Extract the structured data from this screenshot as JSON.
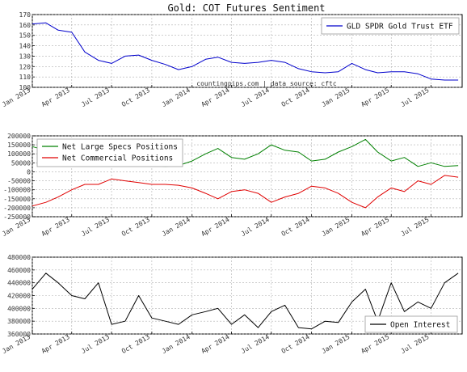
{
  "title": "Gold: COT Futures Sentiment",
  "annotation": "countingpips.com | data source: cftc",
  "x_ticks": [
    "Jan 2013",
    "Apr 2013",
    "Jul 2013",
    "Oct 2013",
    "Jan 2014",
    "Apr 2014",
    "Jul 2014",
    "Oct 2014",
    "Jan 2015",
    "Apr 2015",
    "Jul 2015"
  ],
  "colors": {
    "gld": "#0000cc",
    "specs": "#008000",
    "commercial": "#e00000",
    "oi": "#000000"
  },
  "chart_data": [
    {
      "type": "line",
      "x": [
        "2013-01-01",
        "2013-02-01",
        "2013-03-01",
        "2013-04-01",
        "2013-05-01",
        "2013-06-01",
        "2013-07-01",
        "2013-08-01",
        "2013-09-01",
        "2013-10-01",
        "2013-11-01",
        "2013-12-01",
        "2014-01-01",
        "2014-02-01",
        "2014-03-01",
        "2014-04-01",
        "2014-05-01",
        "2014-06-01",
        "2014-07-01",
        "2014-08-01",
        "2014-09-01",
        "2014-10-01",
        "2014-11-01",
        "2014-12-01",
        "2015-01-01",
        "2015-02-01",
        "2015-03-01",
        "2015-04-01",
        "2015-05-01",
        "2015-06-01",
        "2015-07-01",
        "2015-08-01",
        "2015-09-01"
      ],
      "series": [
        {
          "name": "GLD SPDR Gold Trust ETF",
          "values": [
            161,
            162,
            155,
            153,
            134,
            126,
            123,
            130,
            131,
            126,
            122,
            117,
            120,
            127,
            129,
            124,
            123,
            124,
            126,
            124,
            118,
            115,
            114,
            115,
            123,
            117,
            114,
            115,
            115,
            113,
            108,
            107,
            107
          ]
        }
      ],
      "ylim": [
        100,
        170
      ],
      "yticks": [
        100,
        110,
        120,
        130,
        140,
        150,
        160,
        170
      ],
      "legend": "top-right",
      "grid": true
    },
    {
      "type": "line",
      "x": [
        "2013-01-01",
        "2013-02-01",
        "2013-03-01",
        "2013-04-01",
        "2013-05-01",
        "2013-06-01",
        "2013-07-01",
        "2013-08-01",
        "2013-09-01",
        "2013-10-01",
        "2013-11-01",
        "2013-12-01",
        "2014-01-01",
        "2014-02-01",
        "2014-03-01",
        "2014-04-01",
        "2014-05-01",
        "2014-06-01",
        "2014-07-01",
        "2014-08-01",
        "2014-09-01",
        "2014-10-01",
        "2014-11-01",
        "2014-12-01",
        "2015-01-01",
        "2015-02-01",
        "2015-03-01",
        "2015-04-01",
        "2015-05-01",
        "2015-06-01",
        "2015-07-01",
        "2015-08-01",
        "2015-09-01"
      ],
      "series": [
        {
          "name": "Net Large Specs Positions",
          "values": [
            140000,
            120000,
            100000,
            60000,
            40000,
            55000,
            80000,
            70000,
            50000,
            35000,
            30000,
            35000,
            60000,
            100000,
            130000,
            80000,
            70000,
            100000,
            150000,
            120000,
            110000,
            60000,
            70000,
            110000,
            140000,
            180000,
            110000,
            60000,
            80000,
            30000,
            50000,
            30000,
            35000
          ]
        },
        {
          "name": "Net Commercial Positions",
          "values": [
            -190000,
            -170000,
            -140000,
            -100000,
            -70000,
            -70000,
            -40000,
            -50000,
            -60000,
            -70000,
            -70000,
            -75000,
            -90000,
            -120000,
            -150000,
            -110000,
            -100000,
            -120000,
            -170000,
            -140000,
            -120000,
            -80000,
            -90000,
            -120000,
            -170000,
            -200000,
            -140000,
            -90000,
            -110000,
            -50000,
            -70000,
            -20000,
            -30000
          ]
        }
      ],
      "ylim": [
        -250000,
        200000
      ],
      "yticks": [
        -250000,
        -200000,
        -150000,
        -100000,
        -50000,
        0,
        50000,
        100000,
        150000,
        200000
      ],
      "legend": "top-left",
      "grid": true
    },
    {
      "type": "line",
      "x": [
        "2013-01-01",
        "2013-02-01",
        "2013-03-01",
        "2013-04-01",
        "2013-05-01",
        "2013-06-01",
        "2013-07-01",
        "2013-08-01",
        "2013-09-01",
        "2013-10-01",
        "2013-11-01",
        "2013-12-01",
        "2014-01-01",
        "2014-02-01",
        "2014-03-01",
        "2014-04-01",
        "2014-05-01",
        "2014-06-01",
        "2014-07-01",
        "2014-08-01",
        "2014-09-01",
        "2014-10-01",
        "2014-11-01",
        "2014-12-01",
        "2015-01-01",
        "2015-02-01",
        "2015-03-01",
        "2015-04-01",
        "2015-05-01",
        "2015-06-01",
        "2015-07-01",
        "2015-08-01",
        "2015-09-01"
      ],
      "series": [
        {
          "name": "Open Interest",
          "values": [
            430000,
            455000,
            440000,
            420000,
            415000,
            440000,
            375000,
            380000,
            420000,
            385000,
            380000,
            375000,
            390000,
            395000,
            400000,
            375000,
            390000,
            370000,
            395000,
            405000,
            370000,
            368000,
            380000,
            378000,
            410000,
            430000,
            380000,
            440000,
            395000,
            410000,
            400000,
            440000,
            455000
          ]
        }
      ],
      "ylim": [
        360000,
        480000
      ],
      "yticks": [
        360000,
        380000,
        400000,
        420000,
        440000,
        460000,
        480000
      ],
      "legend": "bottom-right",
      "grid": true
    }
  ]
}
